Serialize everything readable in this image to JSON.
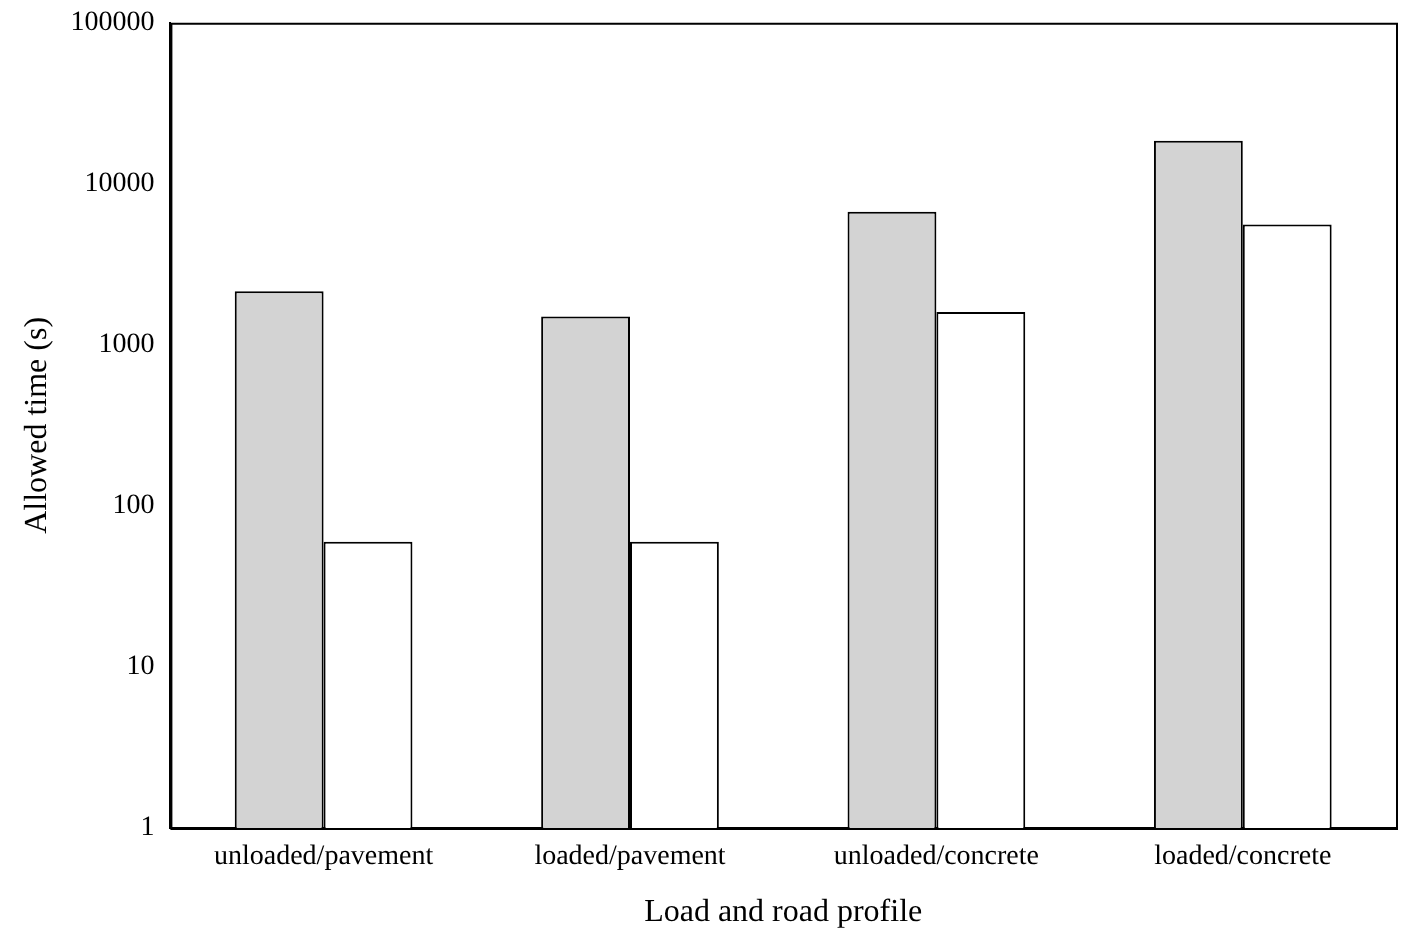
{
  "chart_data": {
    "type": "bar",
    "xlabel": "Load and road profile",
    "ylabel": "Allowed time (s)",
    "categories": [
      "unloaded/pavement",
      "loaded/pavement",
      "unloaded/concrete",
      "loaded/concrete"
    ],
    "series": [
      {
        "color": "#d3d3d3",
        "values": [
          2150,
          1500,
          6700,
          18500
        ]
      },
      {
        "color": "#ffffff",
        "values": [
          60,
          60,
          1600,
          5600
        ]
      }
    ],
    "log": true,
    "ylim": [
      1,
      100000
    ],
    "yticks": [
      1,
      10,
      100,
      1000,
      10000,
      100000
    ],
    "grid": false,
    "legend": false
  }
}
